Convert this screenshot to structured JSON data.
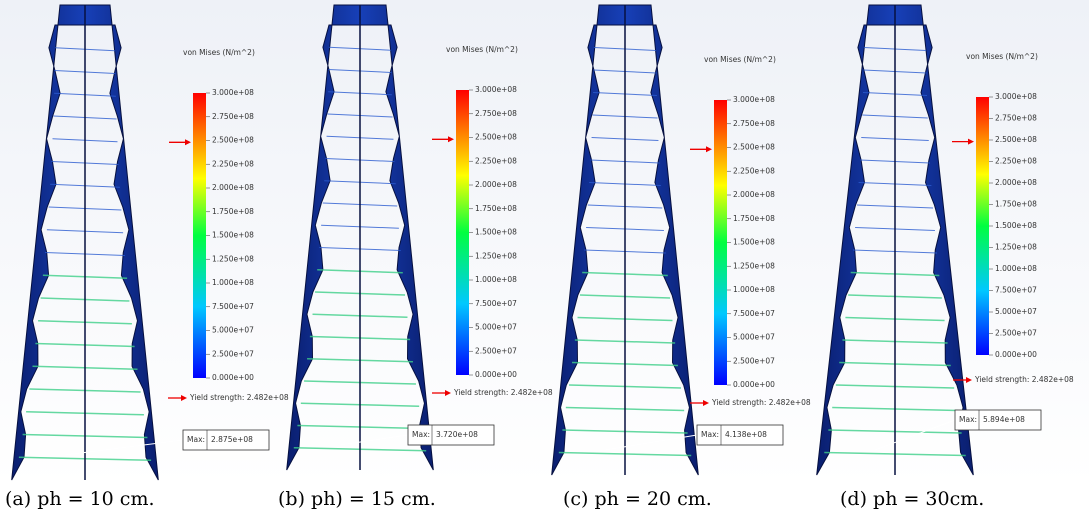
{
  "scale": {
    "title": "von Mises (N/m^2)",
    "ticks": [
      "3.000e+08",
      "2.750e+08",
      "2.500e+08",
      "2.250e+08",
      "2.000e+08",
      "1.750e+08",
      "1.500e+08",
      "1.250e+08",
      "1.000e+08",
      "7.500e+07",
      "5.000e+07",
      "2.500e+07",
      "0.000e+00"
    ],
    "yield": "Yield strength: 2.482e+08",
    "max_label": "Max:"
  },
  "panels": [
    {
      "max": "2.875e+08",
      "caption": "(a) ph = 10 cm."
    },
    {
      "max": "3.720e+08",
      "caption": "(b) ph) = 15 cm."
    },
    {
      "max": "4.138e+08",
      "caption": "(c) ph = 20 cm."
    },
    {
      "max": "5.894e+08",
      "caption": "(d) ph = 30cm."
    }
  ]
}
